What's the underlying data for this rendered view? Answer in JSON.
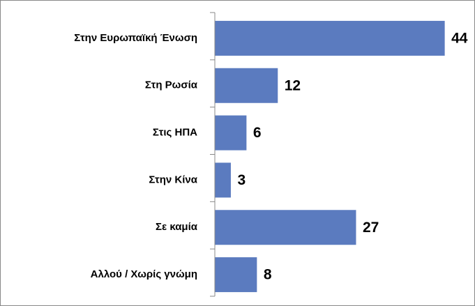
{
  "chart_data": {
    "type": "bar",
    "orientation": "horizontal",
    "categories": [
      "Στην Ευρωπαϊκή Ένωση",
      "Στη Ρωσία",
      "Στις ΗΠΑ",
      "Στην Κίνα",
      "Σε καμία",
      "Αλλού / Χωρίς γνώμη"
    ],
    "values": [
      44,
      12,
      6,
      3,
      27,
      8
    ],
    "color": "#5b7bbf"
  }
}
